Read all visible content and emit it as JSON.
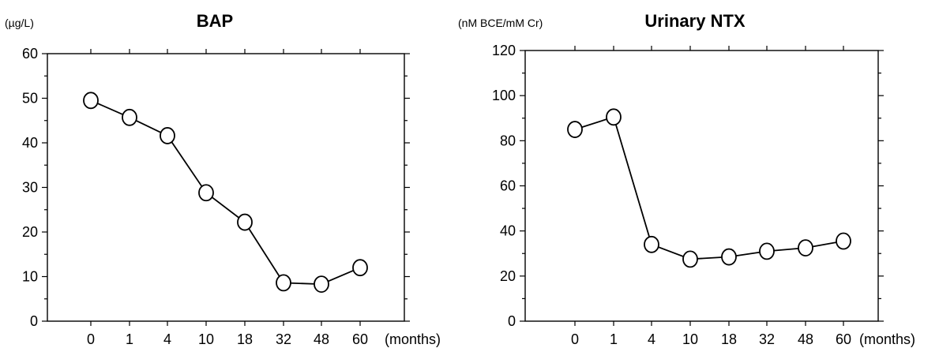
{
  "chart_data": [
    {
      "type": "line",
      "title": "BAP",
      "ylabel": "(µg/L)",
      "xlabel": "(months)",
      "categories": [
        "0",
        "1",
        "4",
        "10",
        "18",
        "32",
        "48",
        "60"
      ],
      "series": [
        {
          "values": [
            49.5,
            45.7,
            41.6,
            28.8,
            22.2,
            8.6,
            8.3,
            12.0
          ]
        }
      ],
      "ylim": [
        0,
        60
      ],
      "yticks": [
        0,
        10,
        20,
        30,
        40,
        50,
        60
      ],
      "grid": false
    },
    {
      "type": "line",
      "title": "Urinary NTX",
      "ylabel": "(nM BCE/mM Cr)",
      "xlabel": "(months)",
      "categories": [
        "0",
        "1",
        "4",
        "10",
        "18",
        "32",
        "48",
        "60"
      ],
      "series": [
        {
          "values": [
            85,
            90.5,
            34,
            27.5,
            28.5,
            31,
            32.5,
            35.5
          ]
        }
      ],
      "ylim": [
        0,
        120
      ],
      "yticks": [
        0,
        20,
        40,
        60,
        80,
        100,
        120
      ],
      "grid": false
    }
  ]
}
